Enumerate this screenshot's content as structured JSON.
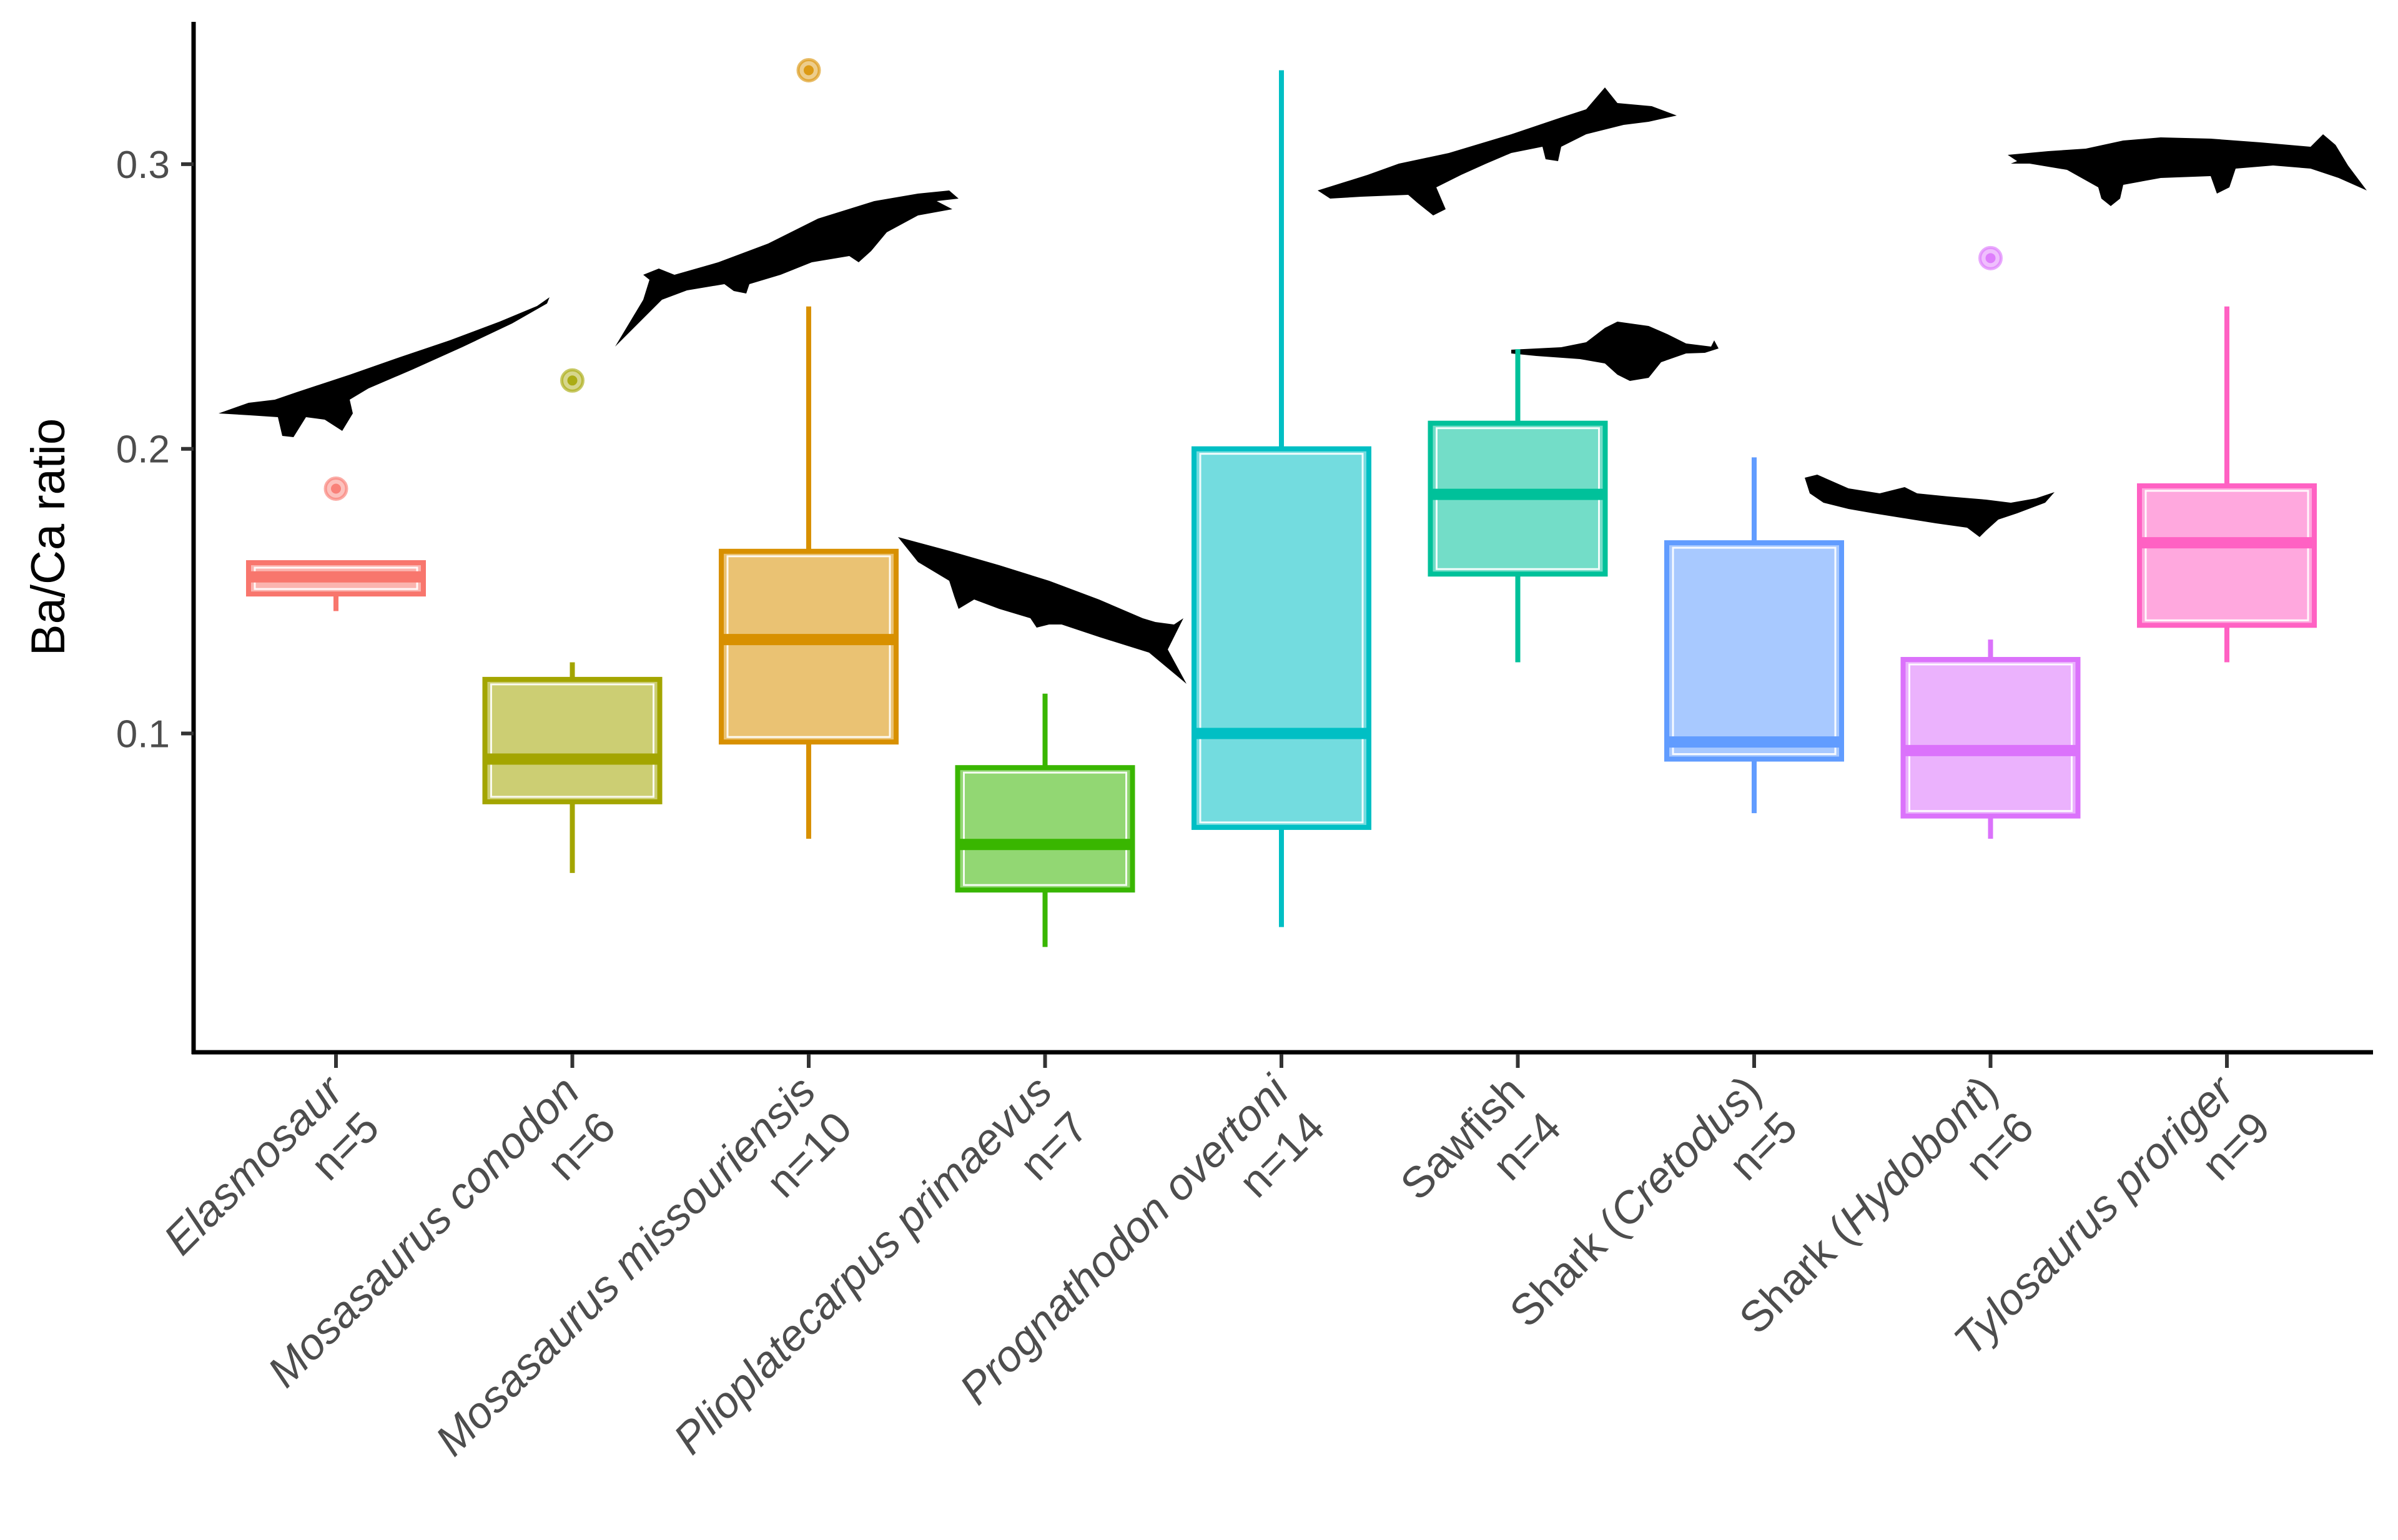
{
  "chart_data": {
    "type": "box",
    "title": "",
    "xlabel": "",
    "ylabel": "Ba/Ca ratio",
    "ylim": [
      -0.012,
      0.35
    ],
    "yticks": [
      0.1,
      0.2,
      0.3
    ],
    "ytick_labels": [
      "0.1",
      "0.2",
      "0.3"
    ],
    "grid": false,
    "legend": "none",
    "series": [
      {
        "name": "Elasmosaur",
        "italic_name": "Elasmosaur",
        "suffix": "",
        "n_label": "n=5",
        "color": "#F8766D",
        "min": 0.143,
        "q1": 0.149,
        "median": 0.155,
        "q3": 0.16,
        "max": 0.16,
        "outliers": [
          0.186
        ]
      },
      {
        "name": "Mosasaurus conodon",
        "italic_name": "Mosasaurus conodon",
        "suffix": "",
        "n_label": "n=6",
        "color": "#A3A500",
        "min": 0.051,
        "q1": 0.076,
        "median": 0.091,
        "q3": 0.119,
        "max": 0.125,
        "outliers": [
          0.224
        ]
      },
      {
        "name": "Mosasaurus missouriensis",
        "italic_name": "Mosasaurus missouriensis",
        "suffix": "",
        "n_label": "n=10",
        "color": "#D89000",
        "min": 0.063,
        "q1": 0.097,
        "median": 0.133,
        "q3": 0.164,
        "max": 0.25,
        "outliers": [
          0.333
        ]
      },
      {
        "name": "Plioplatecarpus primaevus",
        "italic_name": "Plioplatecarpus primaevus",
        "suffix": "",
        "n_label": "n=7",
        "color": "#39B600",
        "min": 0.025,
        "q1": 0.045,
        "median": 0.061,
        "q3": 0.088,
        "max": 0.114,
        "outliers": []
      },
      {
        "name": "Prognathodon overtoni",
        "italic_name": "Prognathodon overtoni",
        "suffix": "",
        "n_label": "n=14",
        "color": "#00BFC4",
        "min": 0.032,
        "q1": 0.067,
        "median": 0.1,
        "q3": 0.2,
        "max": 0.333,
        "outliers": []
      },
      {
        "name": "Sawfish",
        "italic_name": "",
        "plain_name": "Sawfish",
        "suffix": "",
        "n_label": "n=4",
        "color": "#00C19A",
        "min": 0.125,
        "q1": 0.156,
        "median": 0.184,
        "q3": 0.209,
        "max": 0.235,
        "outliers": []
      },
      {
        "name": "Shark (Cretodus)",
        "plain_name": "Shark (",
        "italic_name": "Cretodus",
        "suffix": ")",
        "n_label": "n=5",
        "color": "#619CFF",
        "min": 0.072,
        "q1": 0.091,
        "median": 0.097,
        "q3": 0.167,
        "max": 0.197,
        "outliers": []
      },
      {
        "name": "Shark (Hydobont)",
        "plain_name": "Shark (",
        "italic_name": "Hydobont",
        "suffix": ")",
        "n_label": "n=6",
        "color": "#DB72FB",
        "min": 0.063,
        "q1": 0.071,
        "median": 0.094,
        "q3": 0.126,
        "max": 0.133,
        "outliers": [
          0.267
        ]
      },
      {
        "name": "Tylosaurus proriger",
        "italic_name": "Tylosaurus proriger",
        "suffix": "",
        "n_label": "n=9",
        "color": "#FF61C3",
        "min": 0.125,
        "q1": 0.138,
        "median": 0.167,
        "q3": 0.187,
        "max": 0.25,
        "outliers": []
      }
    ],
    "silhouettes": [
      {
        "name": "elasmosaur-silhouette",
        "category_index": 0
      },
      {
        "name": "mosasaurus-conodon-silhouette",
        "category_index": 1
      },
      {
        "name": "mosasaurus-missouriensis-silhouette",
        "category_index": 2
      },
      {
        "name": "plioplatecarpus-silhouette",
        "category_index": 3
      },
      {
        "name": "prognathodon-silhouette",
        "category_index": 4
      },
      {
        "name": "sawfish-silhouette",
        "category_index": 5
      },
      {
        "name": "shark-hydobont-silhouette",
        "category_index": 6
      },
      {
        "name": "tylosaurus-silhouette",
        "category_index": 8
      }
    ]
  }
}
